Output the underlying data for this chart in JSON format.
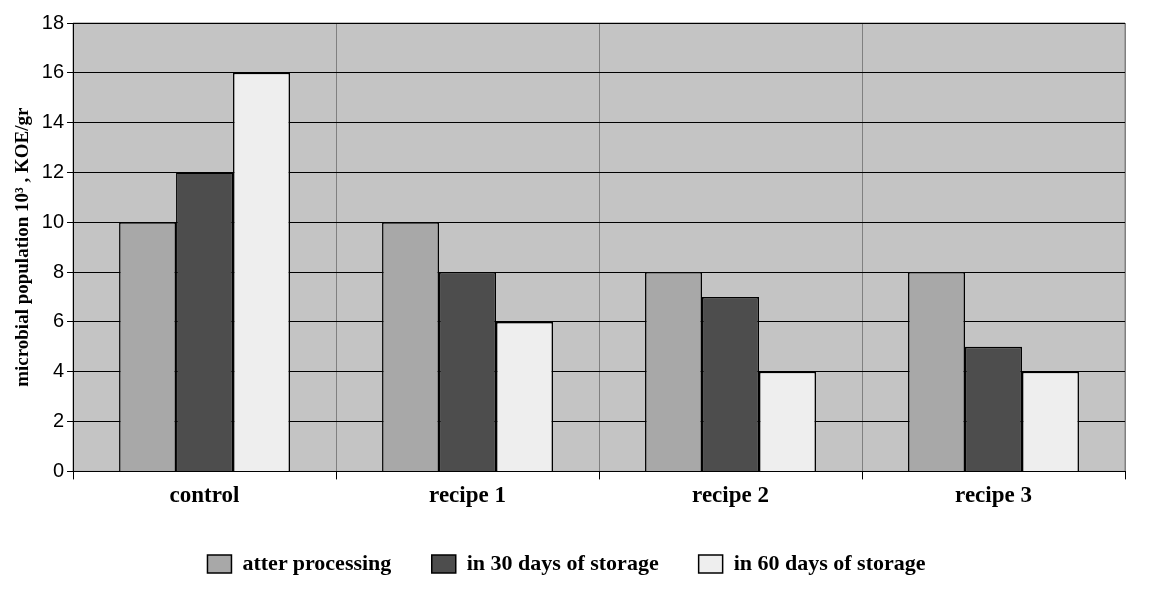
{
  "chart_data": {
    "type": "bar",
    "ylabel": "microbial population 10³ , KOE/gr",
    "categories": [
      "control",
      "recipe 1",
      "recipe 2",
      "recipe 3"
    ],
    "series": [
      {
        "name": "atter processing",
        "color": "#a8a8a8",
        "values": [
          10,
          10,
          8,
          8
        ]
      },
      {
        "name": "in 30 days of storage",
        "color": "#4d4d4d",
        "values": [
          12,
          8,
          7,
          5
        ]
      },
      {
        "name": "in 60 days of storage",
        "color": "#eeeeee",
        "values": [
          16,
          6,
          4,
          4
        ]
      }
    ],
    "ylim": [
      0,
      18
    ],
    "yticks": [
      0,
      2,
      4,
      6,
      8,
      10,
      12,
      14,
      16,
      18
    ],
    "grid": true,
    "legend": "bottom"
  }
}
